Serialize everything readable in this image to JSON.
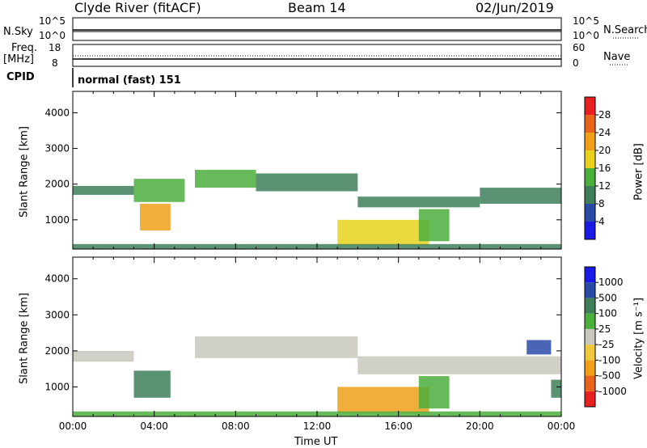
{
  "header": {
    "station": "Clyde River (fitACF)",
    "beam": "Beam 14",
    "date": "02/Jun/2019"
  },
  "strip_labels": {
    "nsky": "N.Sky",
    "nsky_top": "10^5",
    "nsky_bottom": "10^0",
    "nsearch": "N.Search",
    "nsearch_top": "10^5",
    "nsearch_bottom": "10^0",
    "freq": "Freq.",
    "freq_unit": "[MHz]",
    "freq_top": "18",
    "freq_bottom": "8",
    "nave": "Nave",
    "nave_top": "60",
    "nave_bottom": "0",
    "cpid": "CPID",
    "cpid_value": "normal (fast) 151"
  },
  "colors": {
    "power_scale": [
      "#1a1ae6",
      "#2a4aa8",
      "#3e7f5a",
      "#4cae3c",
      "#e8d21e",
      "#f0a018",
      "#e8641a",
      "#e82020"
    ],
    "velocity_scale": [
      "#e82020",
      "#e8641a",
      "#f0a018",
      "#f0c83c",
      "#c8c8c0",
      "#4cae3c",
      "#3e7f5a",
      "#2a4aa8",
      "#1a1ae6"
    ]
  },
  "chart_data": [
    {
      "type": "heatmap",
      "name": "power",
      "ylabel": "Slant Range [km]",
      "xlabel": "",
      "ylim": [
        180,
        4600
      ],
      "yticks": [
        "4000",
        "3000",
        "2000",
        "1000"
      ],
      "colorbar_label": "Power [dB]",
      "colorbar_ticks": [
        "28",
        "24",
        "20",
        "16",
        "12",
        "8",
        "4"
      ],
      "colorbar_range": [
        0,
        32
      ],
      "bands": [
        {
          "t0": 0.0,
          "t1": 3.0,
          "r0": 1700,
          "r1": 1950,
          "value": 11
        },
        {
          "t0": 3.0,
          "t1": 5.5,
          "r0": 1500,
          "r1": 2150,
          "value": 12
        },
        {
          "t0": 6.0,
          "t1": 9.0,
          "r0": 1900,
          "r1": 2400,
          "value": 14
        },
        {
          "t0": 9.0,
          "t1": 14.0,
          "r0": 1800,
          "r1": 2300,
          "value": 10
        },
        {
          "t0": 14.0,
          "t1": 20.0,
          "r0": 1350,
          "r1": 1650,
          "value": 9
        },
        {
          "t0": 20.0,
          "t1": 24.0,
          "r0": 1450,
          "r1": 1900,
          "value": 9
        },
        {
          "t0": 3.3,
          "t1": 4.8,
          "r0": 700,
          "r1": 1450,
          "value": 20
        },
        {
          "t0": 13.0,
          "t1": 17.5,
          "r0": 280,
          "r1": 1000,
          "value": 18
        },
        {
          "t0": 17.0,
          "t1": 18.5,
          "r0": 400,
          "r1": 1300,
          "value": 14
        },
        {
          "t0": 0.0,
          "t1": 24.0,
          "r0": 180,
          "r1": 320,
          "value": 10
        }
      ]
    },
    {
      "type": "heatmap",
      "name": "velocity",
      "ylabel": "Slant Range [km]",
      "xlabel": "Time UT",
      "ylim": [
        180,
        4600
      ],
      "yticks": [
        "4000",
        "3000",
        "2000",
        "1000"
      ],
      "xticks": [
        "00:00",
        "04:00",
        "08:00",
        "12:00",
        "16:00",
        "20:00",
        "00:00"
      ],
      "colorbar_label": "Velocity [m s⁻¹]",
      "colorbar_ticks": [
        "1000",
        "500",
        "100",
        "25",
        "-25",
        "-100",
        "-500",
        "-1000"
      ],
      "bands": [
        {
          "t0": 0.0,
          "t1": 3.0,
          "r0": 1700,
          "r1": 2000,
          "value": 0
        },
        {
          "t0": 6.0,
          "t1": 14.0,
          "r0": 1800,
          "r1": 2400,
          "value": 0
        },
        {
          "t0": 14.0,
          "t1": 24.0,
          "r0": 1350,
          "r1": 1850,
          "value": 0
        },
        {
          "t0": 3.0,
          "t1": 4.8,
          "r0": 700,
          "r1": 1450,
          "value": 300
        },
        {
          "t0": 13.0,
          "t1": 17.5,
          "r0": 280,
          "r1": 1000,
          "value": -300
        },
        {
          "t0": 17.0,
          "t1": 18.5,
          "r0": 400,
          "r1": 1300,
          "value": 100
        },
        {
          "t0": 22.3,
          "t1": 23.5,
          "r0": 1900,
          "r1": 2300,
          "value": 700
        },
        {
          "t0": 23.5,
          "t1": 24.0,
          "r0": 700,
          "r1": 1200,
          "value": 300
        },
        {
          "t0": 0.0,
          "t1": 24.0,
          "r0": 180,
          "r1": 320,
          "value": 60
        }
      ]
    }
  ]
}
